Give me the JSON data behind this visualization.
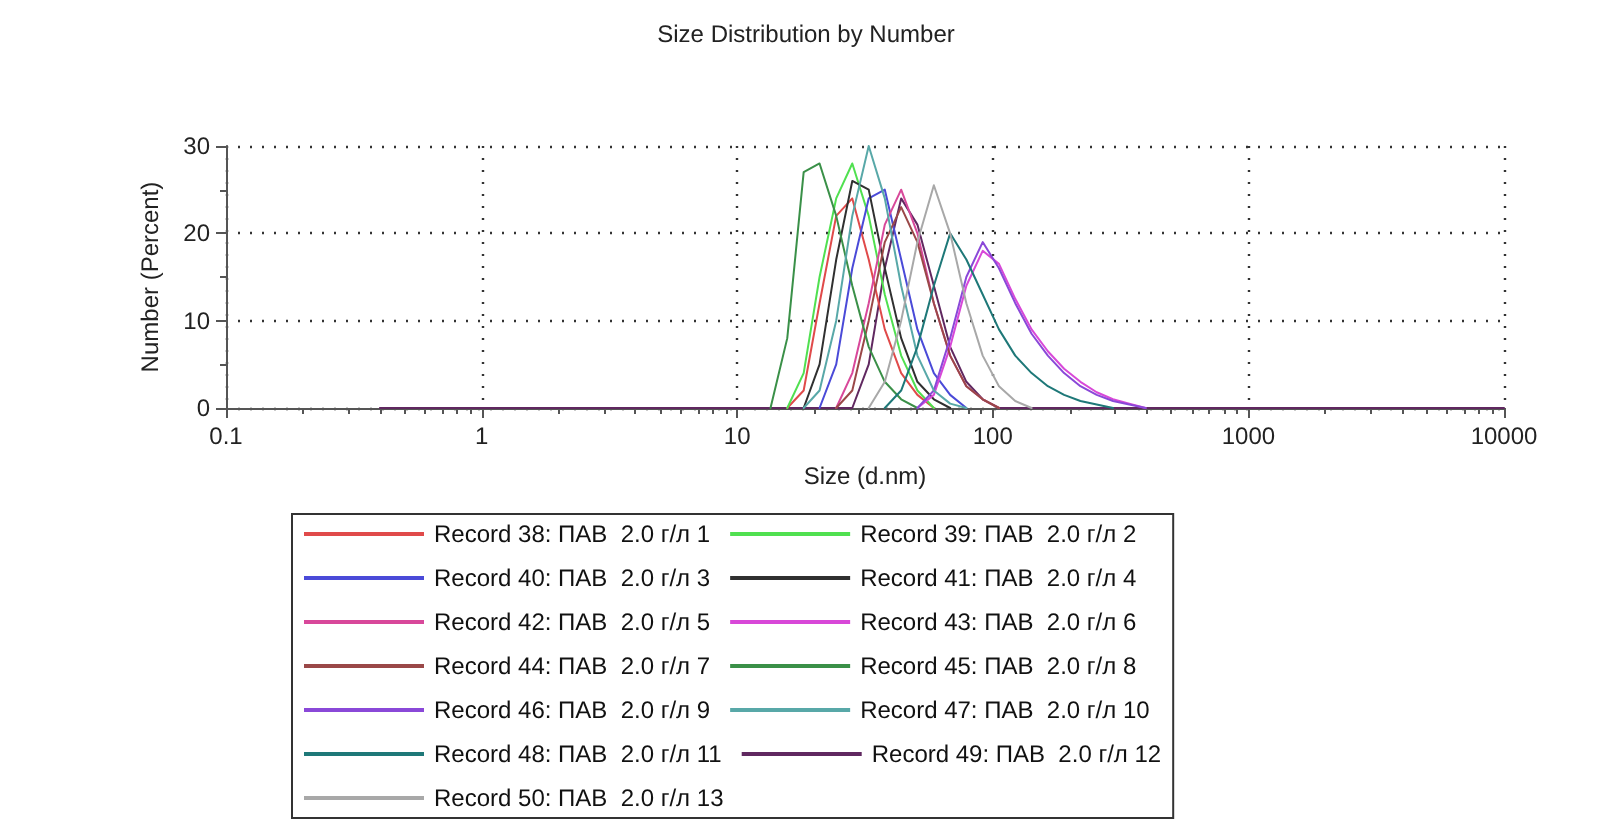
{
  "chart_data": {
    "type": "line",
    "title": "Size Distribution by Number",
    "xlabel": "Size (d.nm)",
    "ylabel": "Number (Percent)",
    "log": "x",
    "xlim": [
      0.1,
      10000
    ],
    "xticks": [
      0.1,
      1,
      10,
      100,
      1000,
      10000
    ],
    "ylim": [
      0,
      30
    ],
    "yticks": [
      0,
      10,
      20,
      30
    ],
    "grid": true,
    "legend": "bottom",
    "marker": "none",
    "line_style": "solid",
    "series": [
      {
        "name": "Record 38: ПАВ  2.0 г/л 1",
        "color": "#e04a4a",
        "x": [
          15.7,
          18.2,
          21.0,
          24.4,
          28.2,
          32.7,
          37.8,
          43.8,
          50.7,
          58.8
        ],
        "values": [
          0,
          2,
          12,
          22,
          24,
          17,
          9,
          4,
          1.5,
          0
        ]
      },
      {
        "name": "Record 39: ПАВ  2.0 г/л 2",
        "color": "#50e050",
        "x": [
          15.7,
          18.2,
          21.0,
          24.4,
          28.2,
          32.7,
          37.8,
          43.8,
          50.7,
          58.8
        ],
        "values": [
          0,
          4,
          15,
          24,
          28,
          22,
          13,
          6,
          2,
          0
        ]
      },
      {
        "name": "Record 40: ПАВ  2.0 г/л 3",
        "color": "#4a4ad8",
        "x": [
          21.0,
          24.4,
          28.2,
          32.7,
          37.8,
          43.8,
          50.7,
          58.8,
          68.1,
          78.8
        ],
        "values": [
          0,
          5,
          16,
          24,
          25,
          17,
          9,
          4,
          1.5,
          0
        ]
      },
      {
        "name": "Record 41: ПАВ  2.0 г/л 4",
        "color": "#303030",
        "x": [
          18.2,
          21.0,
          24.4,
          28.2,
          32.7,
          37.8,
          43.8,
          50.7,
          58.8,
          68.1
        ],
        "values": [
          0,
          5,
          17,
          26,
          25,
          16,
          8,
          3,
          1,
          0
        ]
      },
      {
        "name": "Record 42: ПАВ  2.0 г/л 5",
        "color": "#d8489a",
        "x": [
          24.4,
          28.2,
          32.7,
          37.8,
          43.8,
          50.7,
          58.8,
          68.1,
          78.8,
          91.3,
          105.7
        ],
        "values": [
          0,
          4,
          12,
          21,
          25,
          20,
          12,
          6,
          2.5,
          1,
          0
        ]
      },
      {
        "name": "Record 43: ПАВ  2.0 г/л 6",
        "color": "#d848d8",
        "x": [
          50.7,
          58.8,
          68.1,
          78.8,
          91.3,
          105.7,
          122.4,
          141.8,
          164.2,
          190.1,
          220.2,
          255.0,
          295.3,
          342.0,
          396.1
        ],
        "values": [
          0,
          1.5,
          7,
          14,
          18,
          16.5,
          12.5,
          9,
          6.5,
          4.5,
          3,
          1.8,
          1,
          0.5,
          0
        ]
      },
      {
        "name": "Record 44: ПАВ  2.0 г/л 7",
        "color": "#9a4848",
        "x": [
          24.4,
          28.2,
          32.7,
          37.8,
          43.8,
          50.7,
          58.8,
          68.1,
          78.8,
          91.3,
          105.7
        ],
        "values": [
          0,
          2,
          10,
          19,
          23,
          19,
          12,
          6,
          2.5,
          1,
          0
        ]
      },
      {
        "name": "Record 45: ПАВ  2.0 г/л 8",
        "color": "#3a9048",
        "x": [
          13.5,
          15.7,
          18.2,
          21.0,
          24.4,
          28.2,
          32.7,
          37.8,
          43.8,
          50.7
        ],
        "values": [
          0,
          8,
          27,
          28,
          22,
          14,
          7,
          3,
          1,
          0
        ]
      },
      {
        "name": "Record 46: ПАВ  2.0 г/л 9",
        "color": "#8a48d8",
        "x": [
          50.7,
          58.8,
          68.1,
          78.8,
          91.3,
          105.7,
          122.4,
          141.8,
          164.2,
          190.1,
          220.2,
          255.0,
          295.3,
          342.0,
          396.1
        ],
        "values": [
          0,
          2,
          8,
          15,
          19,
          16,
          12,
          8.5,
          6,
          4,
          2.5,
          1.5,
          0.8,
          0.4,
          0
        ]
      },
      {
        "name": "Record 47: ПАВ  2.0 г/л 10",
        "color": "#58a8a8",
        "x": [
          18.2,
          21.0,
          24.4,
          28.2,
          32.7,
          37.8,
          43.8,
          50.7,
          58.8,
          68.1,
          78.8
        ],
        "values": [
          0,
          2,
          10,
          22,
          30,
          24,
          14,
          6,
          2,
          0.5,
          0
        ]
      },
      {
        "name": "Record 48: ПАВ  2.0 г/л 11",
        "color": "#1e7878",
        "x": [
          37.8,
          43.8,
          50.7,
          58.8,
          68.1,
          78.8,
          91.3,
          105.7,
          122.4,
          141.8,
          164.2,
          190.1,
          220.2,
          255.0,
          295.3
        ],
        "values": [
          0,
          2,
          7,
          14,
          20,
          17,
          13,
          9,
          6,
          4,
          2.5,
          1.5,
          0.8,
          0.4,
          0
        ]
      },
      {
        "name": "Record 49: ПАВ  2.0 г/л 12",
        "color": "#602860",
        "x": [
          0.4,
          28.2,
          32.7,
          37.8,
          43.8,
          50.7,
          58.8,
          68.1,
          78.8,
          91.3,
          105.7,
          10000
        ],
        "values": [
          0,
          0,
          5,
          16,
          24,
          21,
          14,
          7,
          3,
          1,
          0,
          0
        ]
      },
      {
        "name": "Record 50: ПАВ  2.0 г/л 13",
        "color": "#a8a8a8",
        "x": [
          32.7,
          37.8,
          43.8,
          50.7,
          58.8,
          68.1,
          78.8,
          91.3,
          105.7,
          122.4,
          141.8
        ],
        "values": [
          0,
          3,
          10,
          19,
          25.5,
          20,
          12,
          6,
          2.5,
          0.8,
          0
        ]
      }
    ]
  }
}
